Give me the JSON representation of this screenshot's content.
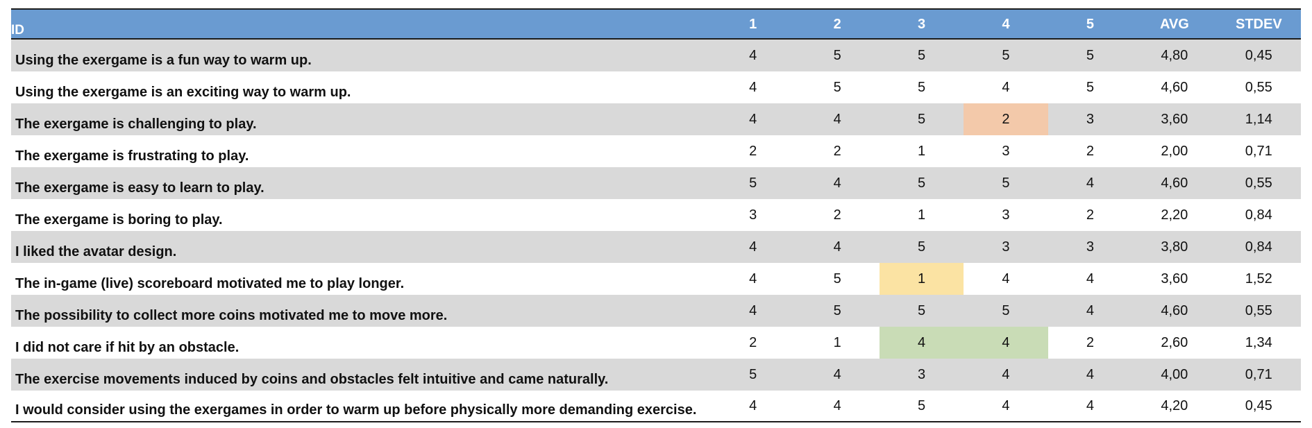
{
  "table": {
    "columns": [
      "ID",
      "1",
      "2",
      "3",
      "4",
      "5",
      "AVG",
      "STDEV"
    ],
    "colors": {
      "header_bg": "#6a9bd1",
      "row_shade": "#d9d9d9",
      "highlight_orange": "#f3c9aa",
      "highlight_yellow": "#fbe3a3",
      "highlight_green": "#c9dcb6"
    },
    "rows": [
      {
        "id": "Using the exergame is a fun way to warm up.",
        "values": [
          "4",
          "5",
          "5",
          "5",
          "5"
        ],
        "avg": "4,80",
        "stdev": "0,45",
        "shaded": true
      },
      {
        "id": "Using the exergame is an exciting way to warm up.",
        "values": [
          "4",
          "5",
          "5",
          "4",
          "5"
        ],
        "avg": "4,60",
        "stdev": "0,55",
        "shaded": false
      },
      {
        "id": "The exergame is challenging to play.",
        "values": [
          "4",
          "4",
          "5",
          "2",
          "3"
        ],
        "avg": "3,60",
        "stdev": "1,14",
        "shaded": true,
        "highlights": {
          "3": "orange"
        }
      },
      {
        "id": "The exergame is frustrating to play.",
        "values": [
          "2",
          "2",
          "1",
          "3",
          "2"
        ],
        "avg": "2,00",
        "stdev": "0,71",
        "shaded": false
      },
      {
        "id": "The exergame is easy to learn to play.",
        "values": [
          "5",
          "4",
          "5",
          "5",
          "4"
        ],
        "avg": "4,60",
        "stdev": "0,55",
        "shaded": true
      },
      {
        "id": "The exergame is boring to play.",
        "values": [
          "3",
          "2",
          "1",
          "3",
          "2"
        ],
        "avg": "2,20",
        "stdev": "0,84",
        "shaded": false
      },
      {
        "id": "I liked the avatar design.",
        "values": [
          "4",
          "4",
          "5",
          "3",
          "3"
        ],
        "avg": "3,80",
        "stdev": "0,84",
        "shaded": true
      },
      {
        "id": "The in-game (live) scoreboard motivated me to play longer.",
        "values": [
          "4",
          "5",
          "1",
          "4",
          "4"
        ],
        "avg": "3,60",
        "stdev": "1,52",
        "shaded": false,
        "highlights": {
          "2": "yellow"
        }
      },
      {
        "id": "The possibility to collect more coins motivated me to move more.",
        "values": [
          "4",
          "5",
          "5",
          "5",
          "4"
        ],
        "avg": "4,60",
        "stdev": "0,55",
        "shaded": true
      },
      {
        "id": "I did not care if hit by an obstacle.",
        "values": [
          "2",
          "1",
          "4",
          "4",
          "2"
        ],
        "avg": "2,60",
        "stdev": "1,34",
        "shaded": false,
        "highlights": {
          "2": "green",
          "3": "green"
        }
      },
      {
        "id": "The exercise movements induced by coins and obstacles felt intuitive and came naturally.",
        "values": [
          "5",
          "4",
          "3",
          "4",
          "4"
        ],
        "avg": "4,00",
        "stdev": "0,71",
        "shaded": true
      },
      {
        "id": "I would consider using the exergames in order to warm up before physically more demanding exercise.",
        "values": [
          "4",
          "4",
          "5",
          "4",
          "4"
        ],
        "avg": "4,20",
        "stdev": "0,45",
        "shaded": false
      }
    ]
  }
}
